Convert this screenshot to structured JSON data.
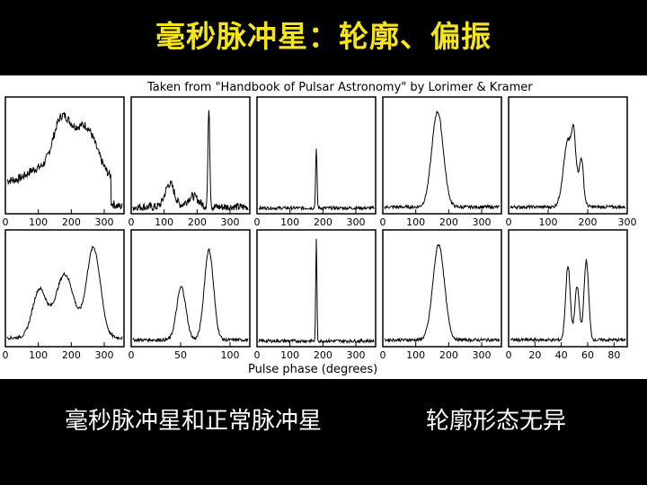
{
  "slide": {
    "title": "毫秒脉冲星：轮廓、偏振",
    "caption_left": "毫秒脉冲星和正常脉冲星",
    "caption_right": "轮廓形态无异"
  },
  "figure": {
    "credit": "Taken from \"Handbook of Pulsar Astronomy\" by Lorimer & Kramer",
    "xlabel": "Pulse phase (degrees)"
  },
  "colors": {
    "title": "#f5e51c",
    "caption": "#ffffff",
    "background": "#000000"
  },
  "chart_data": [
    {
      "type": "line",
      "row": "top",
      "col": 1,
      "xlim": [
        0,
        360
      ],
      "ticks": [
        "0",
        "100",
        "200",
        "300"
      ],
      "tick_values": [
        0,
        100,
        200,
        300
      ]
    },
    {
      "type": "line",
      "row": "top",
      "col": 2,
      "xlim": [
        0,
        360
      ],
      "ticks": [
        "0",
        "100",
        "200",
        "300"
      ],
      "tick_values": [
        0,
        100,
        200,
        300
      ]
    },
    {
      "type": "line",
      "row": "top",
      "col": 3,
      "xlim": [
        0,
        360
      ],
      "ticks": [
        "0",
        "100",
        "200",
        "300"
      ],
      "tick_values": [
        0,
        100,
        200,
        300
      ]
    },
    {
      "type": "line",
      "row": "top",
      "col": 4,
      "xlim": [
        0,
        360
      ],
      "ticks": [
        "0",
        "100",
        "200",
        "300"
      ],
      "tick_values": [
        0,
        100,
        200,
        300
      ]
    },
    {
      "type": "line",
      "row": "top",
      "col": 5,
      "xlim": [
        0,
        300
      ],
      "ticks": [
        "0",
        "100",
        "200",
        "300"
      ],
      "tick_values": [
        0,
        100,
        200,
        300
      ]
    },
    {
      "type": "line",
      "row": "bottom",
      "col": 1,
      "xlim": [
        0,
        360
      ],
      "ticks": [
        "0",
        "100",
        "200",
        "300"
      ],
      "tick_values": [
        0,
        100,
        200,
        300
      ]
    },
    {
      "type": "line",
      "row": "bottom",
      "col": 2,
      "xlim": [
        0,
        120
      ],
      "ticks": [
        "0",
        "50",
        "100"
      ],
      "tick_values": [
        0,
        50,
        100
      ]
    },
    {
      "type": "line",
      "row": "bottom",
      "col": 3,
      "xlim": [
        0,
        360
      ],
      "ticks": [
        "0",
        "100",
        "200",
        "300"
      ],
      "tick_values": [
        0,
        100,
        200,
        300
      ]
    },
    {
      "type": "line",
      "row": "bottom",
      "col": 4,
      "xlim": [
        0,
        360
      ],
      "ticks": [
        "0",
        "100",
        "200",
        "300"
      ],
      "tick_values": [
        0,
        100,
        200,
        300
      ]
    },
    {
      "type": "line",
      "row": "bottom",
      "col": 5,
      "xlim": [
        0,
        90
      ],
      "ticks": [
        "0",
        "20",
        "40",
        "60",
        "80"
      ],
      "tick_values": [
        0,
        20,
        40,
        60,
        80
      ]
    }
  ]
}
